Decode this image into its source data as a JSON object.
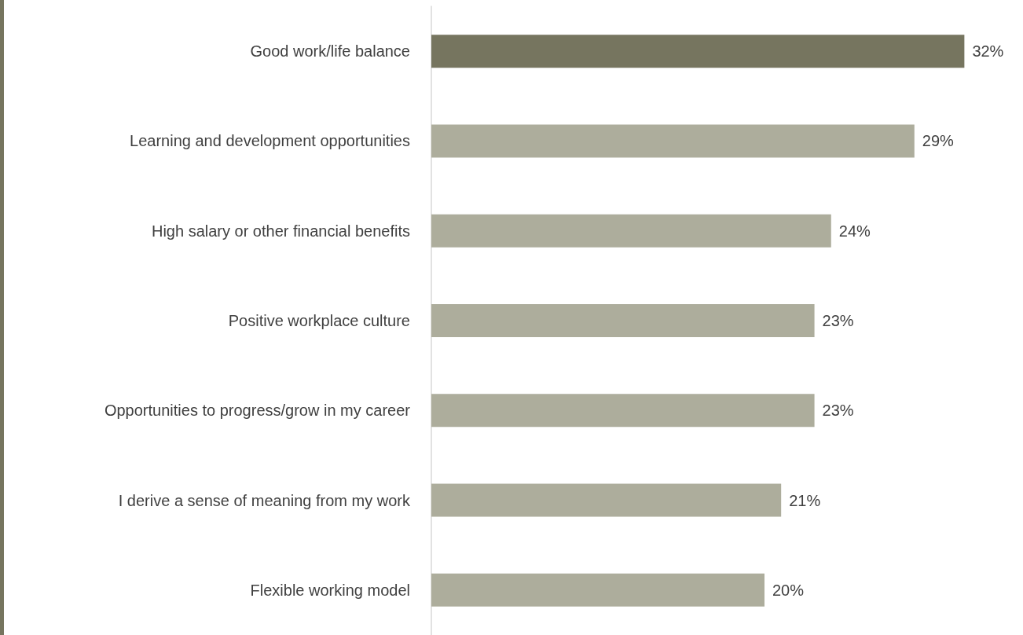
{
  "chart_data": {
    "type": "bar",
    "orientation": "horizontal",
    "categories": [
      "Good work/life balance",
      "Learning and development opportunities",
      "High salary or other financial benefits",
      "Positive workplace culture",
      "Opportunities to progress/grow in my career",
      "I derive a sense of meaning from my work",
      "Flexible working model"
    ],
    "values": [
      32,
      29,
      24,
      23,
      23,
      21,
      20
    ],
    "colors": [
      "#76755f",
      "#adad9c",
      "#adad9c",
      "#adad9c",
      "#adad9c",
      "#adad9c",
      "#adad9c"
    ],
    "value_labels": [
      "32%",
      "29%",
      "24%",
      "23%",
      "23%",
      "21%",
      "20%"
    ]
  }
}
